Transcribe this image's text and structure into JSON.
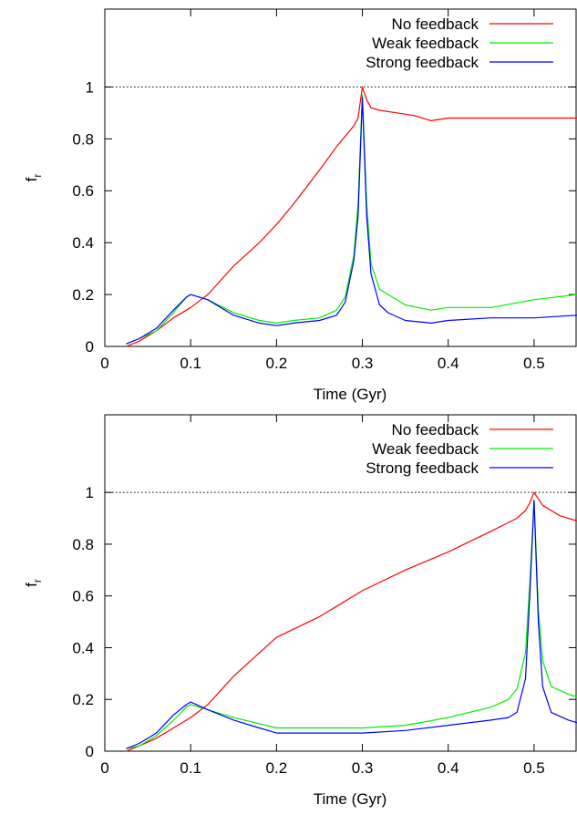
{
  "chart_data": [
    {
      "type": "line",
      "xlabel": "Time (Gyr)",
      "ylabel": "f",
      "ylabel_subscript": "r",
      "xlim": [
        0,
        0.55
      ],
      "ylim": [
        0,
        1.3
      ],
      "xticks": [
        0,
        0.1,
        0.2,
        0.3,
        0.4,
        0.5
      ],
      "xtick_labels": [
        "0",
        "0.1",
        "0.2",
        "0.3",
        "0.4",
        "0.5"
      ],
      "yticks": [
        0,
        0.2,
        0.4,
        0.6,
        0.8,
        1
      ],
      "ytick_labels": [
        "0",
        "0.2",
        "0.4",
        "0.6",
        "0.8",
        "1"
      ],
      "reference_line": {
        "y": 1,
        "style": "dotted"
      },
      "legend_position": "top-right",
      "grid": false,
      "series": [
        {
          "name": "No feedback",
          "color": "#ff0000",
          "x": [
            0.025,
            0.04,
            0.06,
            0.08,
            0.1,
            0.12,
            0.15,
            0.18,
            0.2,
            0.22,
            0.25,
            0.27,
            0.29,
            0.295,
            0.3,
            0.305,
            0.31,
            0.32,
            0.34,
            0.36,
            0.38,
            0.4,
            0.45,
            0.5,
            0.55
          ],
          "y": [
            0,
            0.02,
            0.06,
            0.11,
            0.15,
            0.2,
            0.31,
            0.4,
            0.47,
            0.55,
            0.68,
            0.77,
            0.85,
            0.88,
            1.0,
            0.95,
            0.92,
            0.91,
            0.9,
            0.89,
            0.87,
            0.88,
            0.88,
            0.88,
            0.88
          ]
        },
        {
          "name": "Weak feedback",
          "color": "#00ee00",
          "x": [
            0.025,
            0.04,
            0.06,
            0.08,
            0.095,
            0.1,
            0.12,
            0.15,
            0.18,
            0.2,
            0.22,
            0.25,
            0.27,
            0.28,
            0.29,
            0.295,
            0.3,
            0.305,
            0.31,
            0.32,
            0.33,
            0.35,
            0.38,
            0.4,
            0.45,
            0.5,
            0.55
          ],
          "y": [
            0.01,
            0.03,
            0.06,
            0.13,
            0.19,
            0.2,
            0.18,
            0.13,
            0.1,
            0.09,
            0.1,
            0.11,
            0.14,
            0.19,
            0.35,
            0.55,
            0.97,
            0.55,
            0.32,
            0.22,
            0.2,
            0.16,
            0.14,
            0.15,
            0.15,
            0.18,
            0.2
          ]
        },
        {
          "name": "Strong feedback",
          "color": "#0000ff",
          "x": [
            0.025,
            0.04,
            0.06,
            0.08,
            0.095,
            0.1,
            0.12,
            0.15,
            0.18,
            0.2,
            0.22,
            0.25,
            0.27,
            0.28,
            0.29,
            0.295,
            0.3,
            0.305,
            0.31,
            0.32,
            0.33,
            0.35,
            0.38,
            0.4,
            0.45,
            0.5,
            0.55
          ],
          "y": [
            0.01,
            0.03,
            0.07,
            0.14,
            0.19,
            0.2,
            0.18,
            0.12,
            0.09,
            0.08,
            0.09,
            0.1,
            0.12,
            0.17,
            0.33,
            0.5,
            0.96,
            0.5,
            0.28,
            0.16,
            0.13,
            0.1,
            0.09,
            0.1,
            0.11,
            0.11,
            0.12
          ]
        }
      ]
    },
    {
      "type": "line",
      "xlabel": "Time (Gyr)",
      "ylabel": "f",
      "ylabel_subscript": "r",
      "xlim": [
        0,
        0.55
      ],
      "ylim": [
        0,
        1.3
      ],
      "xticks": [
        0,
        0.1,
        0.2,
        0.3,
        0.4,
        0.5
      ],
      "xtick_labels": [
        "0",
        "0.1",
        "0.2",
        "0.3",
        "0.4",
        "0.5"
      ],
      "yticks": [
        0,
        0.2,
        0.4,
        0.6,
        0.8,
        1
      ],
      "ytick_labels": [
        "0",
        "0.2",
        "0.4",
        "0.6",
        "0.8",
        "1"
      ],
      "reference_line": {
        "y": 1,
        "style": "dotted"
      },
      "legend_position": "top-right",
      "grid": false,
      "series": [
        {
          "name": "No feedback",
          "color": "#ff0000",
          "x": [
            0.025,
            0.04,
            0.06,
            0.08,
            0.1,
            0.12,
            0.15,
            0.2,
            0.25,
            0.3,
            0.35,
            0.4,
            0.45,
            0.48,
            0.49,
            0.495,
            0.5,
            0.51,
            0.52,
            0.53,
            0.55
          ],
          "y": [
            0,
            0.02,
            0.05,
            0.09,
            0.13,
            0.18,
            0.29,
            0.44,
            0.52,
            0.62,
            0.7,
            0.77,
            0.85,
            0.9,
            0.93,
            0.96,
            1.0,
            0.95,
            0.93,
            0.91,
            0.89
          ]
        },
        {
          "name": "Weak feedback",
          "color": "#00ee00",
          "x": [
            0.025,
            0.04,
            0.06,
            0.08,
            0.095,
            0.1,
            0.12,
            0.15,
            0.2,
            0.25,
            0.3,
            0.35,
            0.4,
            0.45,
            0.47,
            0.48,
            0.49,
            0.495,
            0.5,
            0.505,
            0.51,
            0.52,
            0.54,
            0.55
          ],
          "y": [
            0.01,
            0.02,
            0.06,
            0.12,
            0.17,
            0.18,
            0.16,
            0.13,
            0.09,
            0.09,
            0.09,
            0.1,
            0.13,
            0.17,
            0.2,
            0.24,
            0.38,
            0.65,
            0.97,
            0.55,
            0.35,
            0.25,
            0.22,
            0.21
          ]
        },
        {
          "name": "Strong feedback",
          "color": "#0000ff",
          "x": [
            0.025,
            0.04,
            0.06,
            0.08,
            0.095,
            0.1,
            0.12,
            0.15,
            0.18,
            0.2,
            0.25,
            0.3,
            0.35,
            0.4,
            0.45,
            0.47,
            0.48,
            0.49,
            0.495,
            0.5,
            0.505,
            0.51,
            0.52,
            0.54,
            0.55
          ],
          "y": [
            0.01,
            0.03,
            0.07,
            0.14,
            0.18,
            0.19,
            0.16,
            0.12,
            0.09,
            0.07,
            0.07,
            0.07,
            0.08,
            0.1,
            0.12,
            0.13,
            0.15,
            0.28,
            0.6,
            0.97,
            0.5,
            0.25,
            0.15,
            0.12,
            0.11
          ]
        }
      ]
    }
  ]
}
